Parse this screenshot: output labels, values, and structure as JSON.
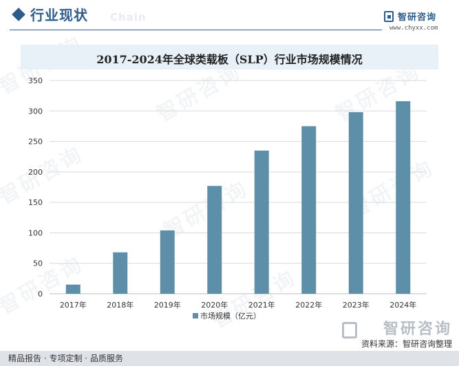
{
  "header": {
    "section_title": "行业现状",
    "ghost_text": "Chain",
    "brand_name": "智研咨询",
    "brand_url": "www.chyxx.com"
  },
  "chart_data": {
    "type": "bar",
    "title": "2017-2024年全球类载板（SLP）行业市场规模情况",
    "categories": [
      "2017年",
      "2018年",
      "2019年",
      "2020年",
      "2021年",
      "2022年",
      "2023年",
      "2024年"
    ],
    "series": [
      {
        "name": "市场规模（亿元）",
        "values": [
          15,
          68,
          104,
          177,
          235,
          275,
          298,
          316
        ]
      }
    ],
    "xlabel": "",
    "ylabel": "",
    "ylim": [
      0,
      350
    ],
    "yticks": [
      0,
      50,
      100,
      150,
      200,
      250,
      300,
      350
    ],
    "grid": true,
    "legend_position": "bottom",
    "colors": {
      "bar": "#5e8fa8",
      "grid": "#d9d9d9",
      "axis": "#bfbfbf"
    }
  },
  "footer": {
    "left_text": "精品报告 · 专项定制 · 品质服务",
    "source_text": "资料来源：智研咨询整理",
    "brand_big": "智研咨询"
  },
  "watermark_text": "智研咨询"
}
